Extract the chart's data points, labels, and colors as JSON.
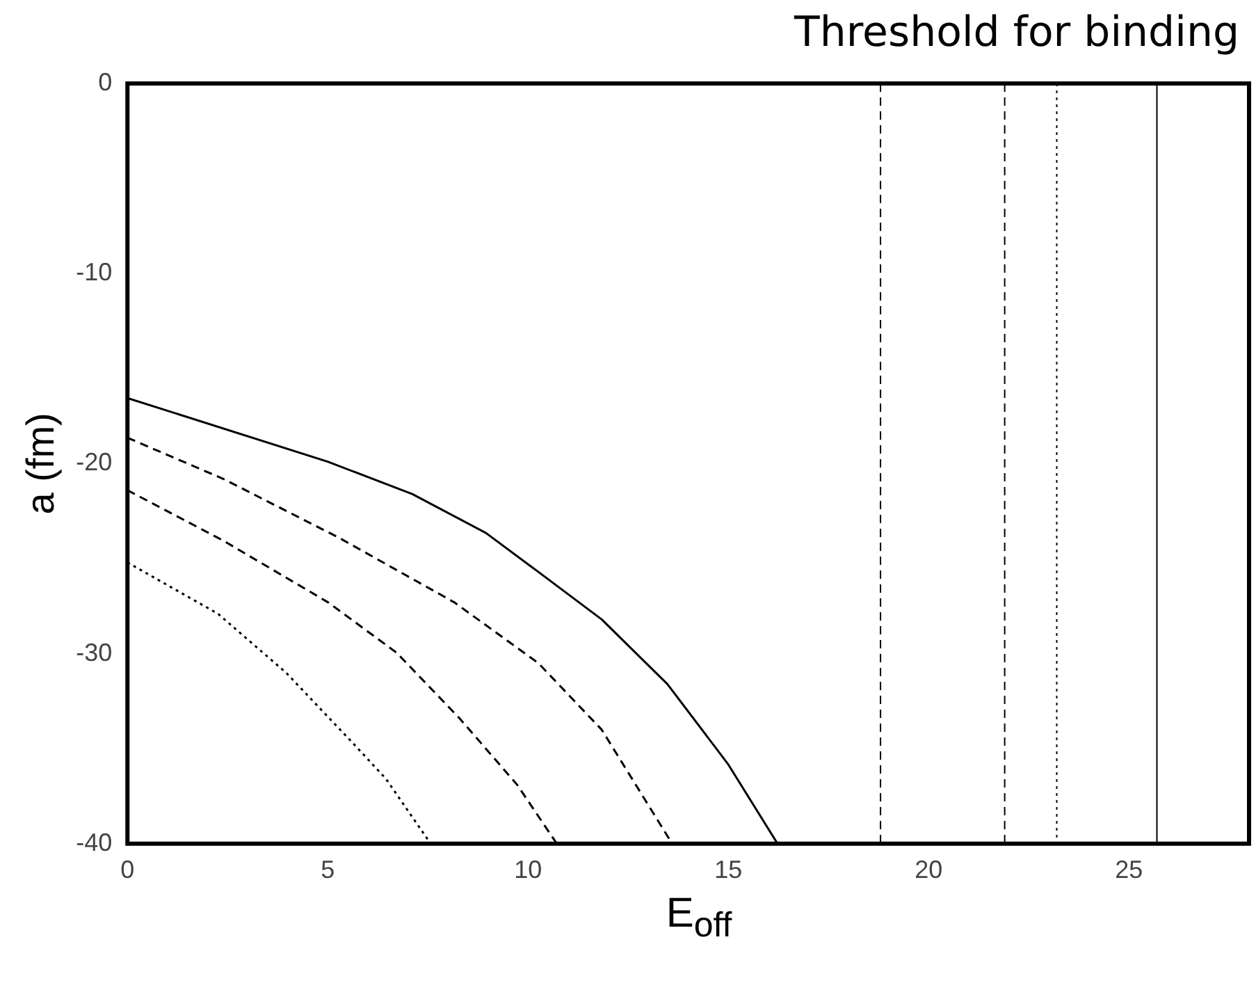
{
  "chart_data": {
    "type": "line",
    "title": "Threshold for binding",
    "xlabel": "E$_{off}$",
    "ylabel": "a (fm)",
    "xlim": [
      0,
      28
    ],
    "xticks": [
      0,
      5,
      10,
      15,
      20,
      25
    ],
    "ylim": [
      -40,
      0
    ],
    "yticks": [
      -40,
      -30,
      -20,
      -10,
      0
    ],
    "grid": false,
    "legend": false,
    "marker": "none",
    "series": [
      {
        "color": "#000000",
        "line_style": "solid",
        "x": [
          0,
          5,
          7.11,
          8.95,
          10.26,
          11.84,
          13.48,
          14.99,
          16.23
        ],
        "values": [
          -16.55,
          -19.9,
          -21.6,
          -23.65,
          -25.7,
          -28.2,
          -31.6,
          -35.8,
          -40
        ]
      },
      {
        "color": "#000000",
        "line_style": "dashed",
        "x": [
          0,
          2.39,
          5.28,
          8.16,
          10.26,
          11.84,
          13.6
        ],
        "values": [
          -18.64,
          -20.8,
          -23.9,
          -27.3,
          -30.5,
          -34,
          -40
        ]
      },
      {
        "color": "#000000",
        "line_style": "dashed",
        "x": [
          0,
          2.39,
          5.01,
          6.72,
          8.29,
          9.73,
          10.72
        ],
        "values": [
          -21.4,
          -24.05,
          -27.3,
          -29.95,
          -33.4,
          -36.9,
          -40
        ]
      },
      {
        "color": "#000000",
        "line_style": "dotted",
        "x": [
          0,
          2.26,
          3.96,
          5.67,
          6.46,
          7.57
        ],
        "values": [
          -25.2,
          -27.9,
          -31,
          -34.8,
          -36.6,
          -40
        ]
      }
    ],
    "ref_lines": [
      {
        "axis": "x",
        "value": 18.8,
        "line_style": "dashed",
        "color": "#000000"
      },
      {
        "axis": "x",
        "value": 21.9,
        "line_style": "dashed",
        "color": "#000000"
      },
      {
        "axis": "x",
        "value": 23.2,
        "line_style": "dotted",
        "color": "#000000"
      },
      {
        "axis": "x",
        "value": 25.7,
        "line_style": "solid",
        "color": "#000000"
      }
    ]
  }
}
